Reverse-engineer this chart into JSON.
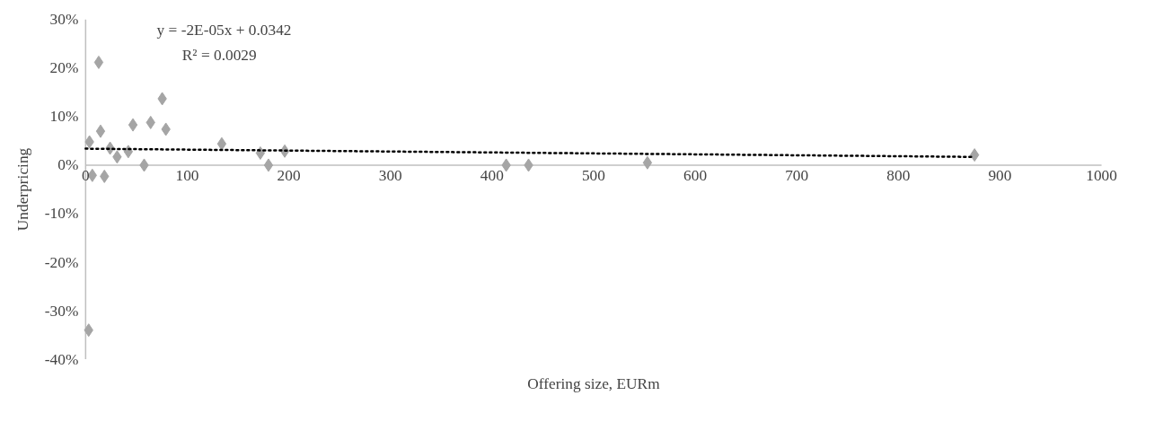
{
  "chart_data": {
    "type": "scatter",
    "xlabel": "Offering size, EURm",
    "ylabel": "Underpricing",
    "xlim": [
      0,
      1000
    ],
    "xticks": [
      0,
      100,
      200,
      300,
      400,
      500,
      600,
      700,
      800,
      900,
      1000
    ],
    "ylim": [
      -40,
      30
    ],
    "yticks": [
      {
        "value": -40,
        "label": "-40%"
      },
      {
        "value": -30,
        "label": "-30%"
      },
      {
        "value": -20,
        "label": "-20%"
      },
      {
        "value": -10,
        "label": "-10%"
      },
      {
        "value": 0,
        "label": "0%"
      },
      {
        "value": 10,
        "label": "10%"
      },
      {
        "value": 20,
        "label": "20%"
      },
      {
        "value": 30,
        "label": "30%"
      }
    ],
    "grid": false,
    "marker": "diamond",
    "annotations": [
      "y = -2E-05x + 0.0342",
      "R² = 0.0029"
    ],
    "series": [
      {
        "color": "#a5a5a5",
        "x": [
          12.9,
          75.4,
          14.7,
          46.6,
          64,
          79,
          3.8,
          24.1,
          31,
          42,
          57.6,
          6.6,
          18.5,
          134,
          172,
          180,
          196,
          414,
          436,
          553,
          875,
          3
        ],
        "values": [
          21.2,
          13.7,
          7.0,
          8.3,
          8.8,
          7.4,
          4.8,
          3.5,
          1.7,
          2.8,
          0,
          -2.1,
          -2.3,
          4.4,
          2.5,
          0,
          2.9,
          0,
          0,
          0.5,
          2.1,
          -34
        ]
      },
      {
        "type": "line",
        "color": "#000000",
        "line_style": "dotted",
        "marker": "none",
        "x": [
          0,
          875
        ],
        "values": [
          3.4,
          1.7
        ]
      }
    ]
  }
}
